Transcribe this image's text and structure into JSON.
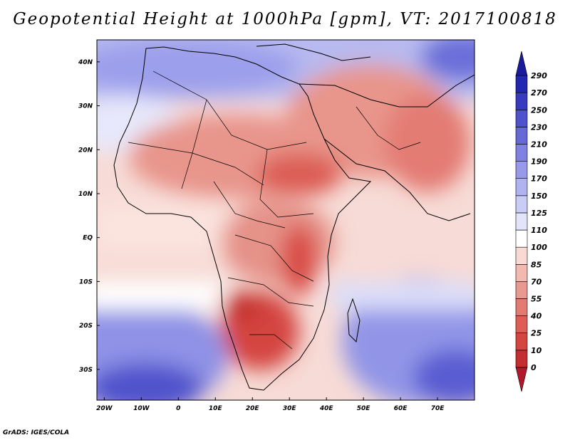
{
  "title": "Geopotential Height at 1000hPa [gpm], VT: 2017100818",
  "footer": "GrADS: IGES/COLA",
  "map": {
    "lon_range": [
      -22,
      80
    ],
    "lat_range": [
      -37,
      45
    ],
    "lon_ticks": [
      {
        "value": -20,
        "label": "20W"
      },
      {
        "value": -10,
        "label": "10W"
      },
      {
        "value": 0,
        "label": "0"
      },
      {
        "value": 10,
        "label": "10E"
      },
      {
        "value": 20,
        "label": "20E"
      },
      {
        "value": 30,
        "label": "30E"
      },
      {
        "value": 40,
        "label": "40E"
      },
      {
        "value": 50,
        "label": "50E"
      },
      {
        "value": 60,
        "label": "60E"
      },
      {
        "value": 70,
        "label": "70E"
      }
    ],
    "lat_ticks": [
      {
        "value": 40,
        "label": "40N"
      },
      {
        "value": 30,
        "label": "30N"
      },
      {
        "value": 20,
        "label": "20N"
      },
      {
        "value": 10,
        "label": "10N"
      },
      {
        "value": 0,
        "label": "EQ"
      },
      {
        "value": -10,
        "label": "10S"
      },
      {
        "value": -20,
        "label": "20S"
      },
      {
        "value": -30,
        "label": "30S"
      }
    ]
  },
  "colorbar": {
    "levels": [
      0,
      10,
      25,
      40,
      55,
      70,
      85,
      100,
      110,
      125,
      150,
      170,
      190,
      210,
      230,
      250,
      270,
      290
    ],
    "colors": [
      "#b2182b",
      "#c42e33",
      "#d4453f",
      "#de5e55",
      "#e37b73",
      "#e9998f",
      "#f2b9b0",
      "#f9d9d3",
      "#ffffff",
      "#e2e4fa",
      "#c9ccf5",
      "#b0b3ef",
      "#979ae8",
      "#7f82e0",
      "#676ad6",
      "#4f52cc",
      "#383bc0",
      "#2226b0",
      "#1a1a9a"
    ],
    "colors_note_ignore": ""
  }
}
